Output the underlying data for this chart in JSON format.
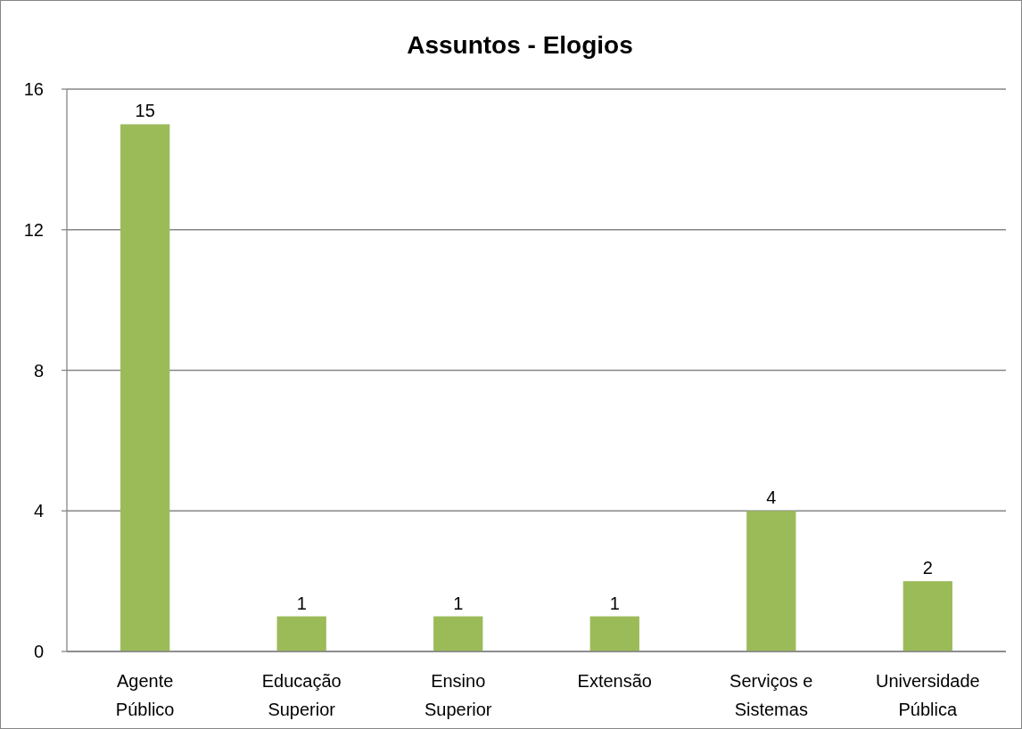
{
  "chart_data": {
    "type": "bar",
    "title": "Assuntos - Elogios",
    "categories": [
      "Agente Público",
      "Educação Superior",
      "Ensino Superior",
      "Extensão",
      "Serviços e Sistemas",
      "Universidade Pública"
    ],
    "values": [
      15,
      1,
      1,
      1,
      4,
      2
    ],
    "color": "#9bbb59",
    "ylim": [
      0,
      16
    ],
    "yticks": [
      0,
      4,
      8,
      12,
      16
    ],
    "grid": "y",
    "data_labels": true
  }
}
